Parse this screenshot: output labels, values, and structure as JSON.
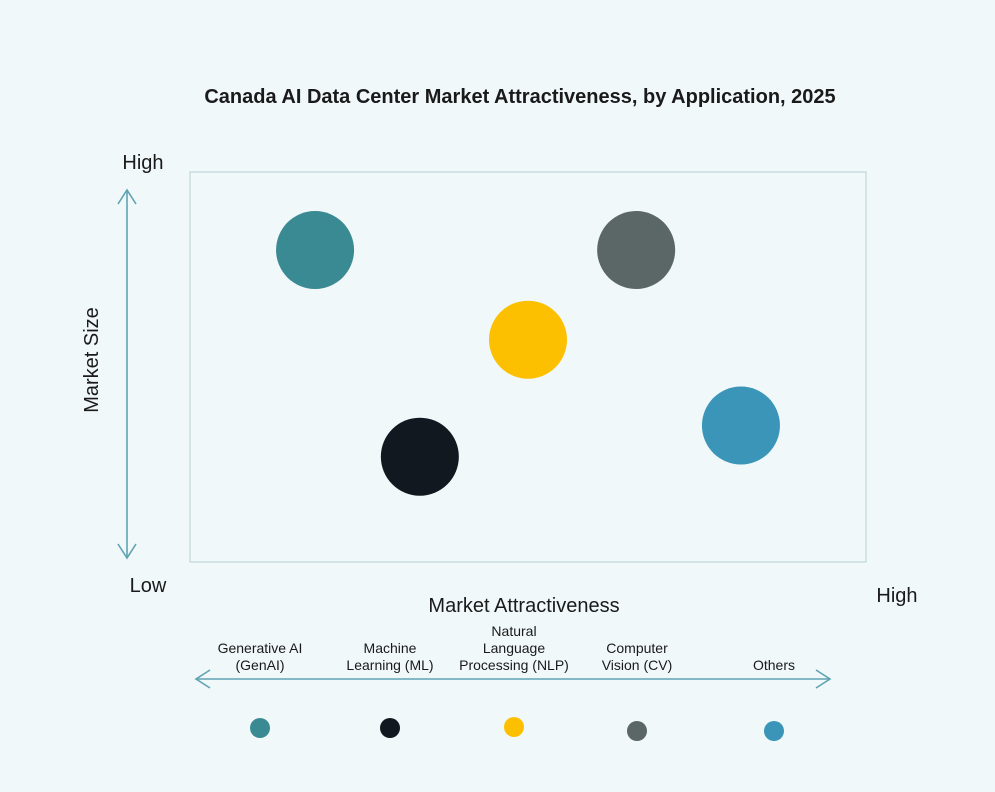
{
  "chart_data": {
    "type": "scatter",
    "title": "Canada AI Data Center Market Attractiveness,  by Application, 2025",
    "xlabel": "Market Attractiveness",
    "ylabel": "Market Size",
    "x_low_label": "Low",
    "x_high_label": "High",
    "y_high_label": "High",
    "xlim": [
      0,
      100
    ],
    "ylim": [
      0,
      100
    ],
    "grid": false,
    "legend_placement": "bottom",
    "series": [
      {
        "name": "Generative AI (GenAI)",
        "label_lines": [
          "Generative AI",
          "(GenAI)"
        ],
        "x": 18.5,
        "y": 80,
        "color": "#3a8a94"
      },
      {
        "name": "Machine Learning (ML)",
        "label_lines": [
          "Machine",
          "Learning (ML)"
        ],
        "x": 34,
        "y": 27,
        "color": "#111820"
      },
      {
        "name": "Natural Language Processing (NLP)",
        "label_lines": [
          "Natural",
          "Language",
          "Processing (NLP)"
        ],
        "x": 50,
        "y": 57,
        "color": "#fcc000"
      },
      {
        "name": "Computer Vision (CV)",
        "label_lines": [
          "Computer",
          "Vision (CV)"
        ],
        "x": 66,
        "y": 80,
        "color": "#5a6766"
      },
      {
        "name": "Others",
        "label_lines": [
          "Others"
        ],
        "x": 81.5,
        "y": 35,
        "color": "#3a95b8"
      }
    ]
  },
  "colors": {
    "background": "#f0f8f9",
    "arrow": "#5fa3b3",
    "frame": "#c9dde0"
  }
}
